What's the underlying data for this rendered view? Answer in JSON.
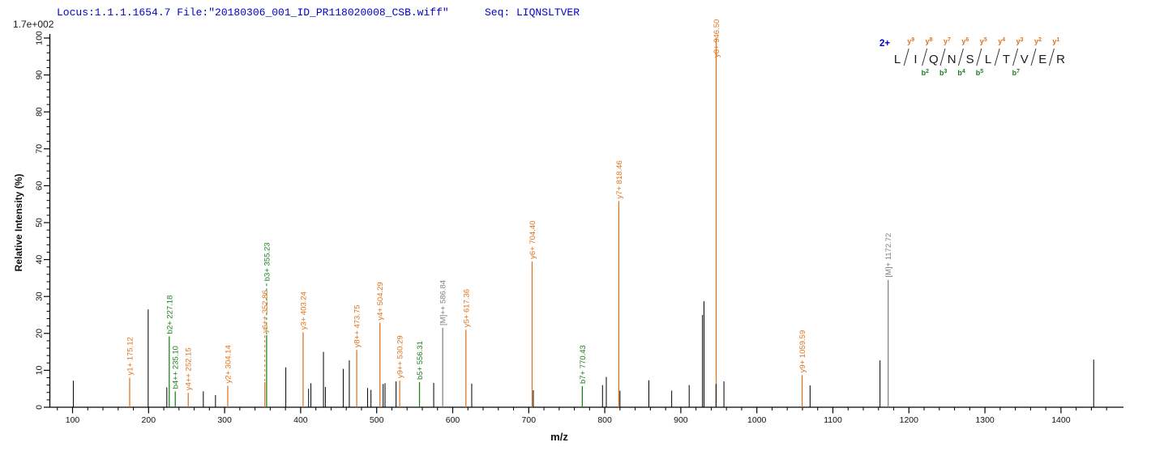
{
  "header": {
    "locus_and_file": "Locus:1.1.1.1654.7 File:\"20180306_001_ID_PR118020008_CSB.wiff\"",
    "seq_label": "Seq: LIQNSLTVER",
    "base_peak_intensity": "1.7e+002"
  },
  "colors": {
    "y_ion": "#e0731d",
    "b_ion": "#1e7d1e",
    "precursor": "#808080",
    "unassigned_peak": "#000000",
    "axis": "#000000",
    "header_text": "#0000cd",
    "charge_text": "#0000cd",
    "sequence_text": "#1a1a1a"
  },
  "chart_data": {
    "type": "bar",
    "subtype": "ms2-centroid-spectrum",
    "xlabel": "m/z",
    "ylabel": "Relative Intensity (%)",
    "x_range": [
      70,
      1482
    ],
    "ylim": [
      0,
      100
    ],
    "grid": false,
    "x_tick_labels": [
      100,
      200,
      300,
      400,
      500,
      600,
      700,
      800,
      900,
      1000,
      1100,
      1200,
      1300,
      1400
    ],
    "x_minor_step": 20,
    "y_tick_labels": [
      0,
      10,
      20,
      30,
      40,
      50,
      60,
      70,
      80,
      90,
      100
    ],
    "y_minor_step": 2,
    "labeled_peaks": [
      {
        "label": "y1+ 175.12",
        "mz": 175.12,
        "pct": 8.0,
        "series": "y"
      },
      {
        "label": "b2+ 227.18",
        "mz": 227.18,
        "pct": 19.2,
        "series": "b"
      },
      {
        "label": "b4++ 235.10",
        "mz": 235.1,
        "pct": 4.3,
        "series": "b"
      },
      {
        "label": "y4++ 252.15",
        "mz": 252.15,
        "pct": 3.9,
        "series": "y"
      },
      {
        "label": "y2+ 304.14",
        "mz": 304.14,
        "pct": 5.8,
        "series": "y"
      },
      {
        "label": "y6++ 352.86",
        "mz": 352.86,
        "pct": 6.8,
        "series": "y",
        "label_from_pct": 19.5
      },
      {
        "label": "b3+ 355.23",
        "mz": 355.23,
        "pct": 19.5,
        "series": "b",
        "label_from_pct": 33.5
      },
      {
        "label": "y3+ 403.24",
        "mz": 403.24,
        "pct": 20.3,
        "series": "y"
      },
      {
        "label": "y8++ 473.75",
        "mz": 473.75,
        "pct": 15.5,
        "series": "y"
      },
      {
        "label": "y4+ 504.29",
        "mz": 504.29,
        "pct": 22.9,
        "series": "y"
      },
      {
        "label": "y9++ 530.29",
        "mz": 530.29,
        "pct": 7.2,
        "series": "y"
      },
      {
        "label": "b5+ 556.31",
        "mz": 556.31,
        "pct": 6.8,
        "series": "b"
      },
      {
        "label": "[M]++ 586.84",
        "mz": 586.84,
        "pct": 21.5,
        "series": "M"
      },
      {
        "label": "y5+ 617.36",
        "mz": 617.36,
        "pct": 21.0,
        "series": "y"
      },
      {
        "label": "y6+ 704.40",
        "mz": 704.4,
        "pct": 39.5,
        "series": "y"
      },
      {
        "label": "b7+ 770.43",
        "mz": 770.43,
        "pct": 5.7,
        "series": "b"
      },
      {
        "label": "y7+ 818.46",
        "mz": 818.46,
        "pct": 55.8,
        "series": "y"
      },
      {
        "label": "y8+ 946.50",
        "mz": 946.5,
        "pct": 100.0,
        "series": "y"
      },
      {
        "label": "y9+ 1059.59",
        "mz": 1059.59,
        "pct": 8.7,
        "series": "y"
      },
      {
        "label": "[M]+ 1172.72",
        "mz": 1172.72,
        "pct": 34.5,
        "series": "M"
      }
    ],
    "unlabeled_peaks": [
      [
        101,
        7.2
      ],
      [
        199.5,
        26.5
      ],
      [
        224,
        5.4
      ],
      [
        272,
        4.3
      ],
      [
        288,
        3.3
      ],
      [
        380.5,
        10.8
      ],
      [
        410.5,
        5.0
      ],
      [
        413.5,
        6.5
      ],
      [
        430,
        15.0
      ],
      [
        432.5,
        5.5
      ],
      [
        456,
        10.4
      ],
      [
        464,
        12.7
      ],
      [
        488,
        5.2
      ],
      [
        492.5,
        4.7
      ],
      [
        508.5,
        6.3
      ],
      [
        511,
        6.5
      ],
      [
        525.5,
        7.0
      ],
      [
        575,
        6.6
      ],
      [
        625,
        6.4
      ],
      [
        706,
        4.6
      ],
      [
        797,
        6.0
      ],
      [
        802,
        8.2
      ],
      [
        820,
        4.5
      ],
      [
        858,
        7.3
      ],
      [
        888,
        4.5
      ],
      [
        911,
        6.0
      ],
      [
        928.5,
        25.0
      ],
      [
        930.5,
        28.7
      ],
      [
        946.3,
        6.3
      ],
      [
        956.7,
        7.0
      ],
      [
        1070,
        5.9
      ],
      [
        1162,
        12.7
      ],
      [
        1443,
        12.9
      ]
    ],
    "precursor_charge": "2+",
    "sequence": {
      "letters": [
        "L",
        "I",
        "Q",
        "N",
        "S",
        "L",
        "T",
        "V",
        "E",
        "R"
      ],
      "y_ions": [
        "y9",
        "y8",
        "y7",
        "y6",
        "y5",
        "y4",
        "y3",
        "y2",
        "y1"
      ],
      "b_ions": [
        {
          "label": "b2",
          "gap": 1
        },
        {
          "label": "b3",
          "gap": 2
        },
        {
          "label": "b4",
          "gap": 3
        },
        {
          "label": "b5",
          "gap": 4
        },
        {
          "label": "b7",
          "gap": 6
        }
      ]
    }
  }
}
